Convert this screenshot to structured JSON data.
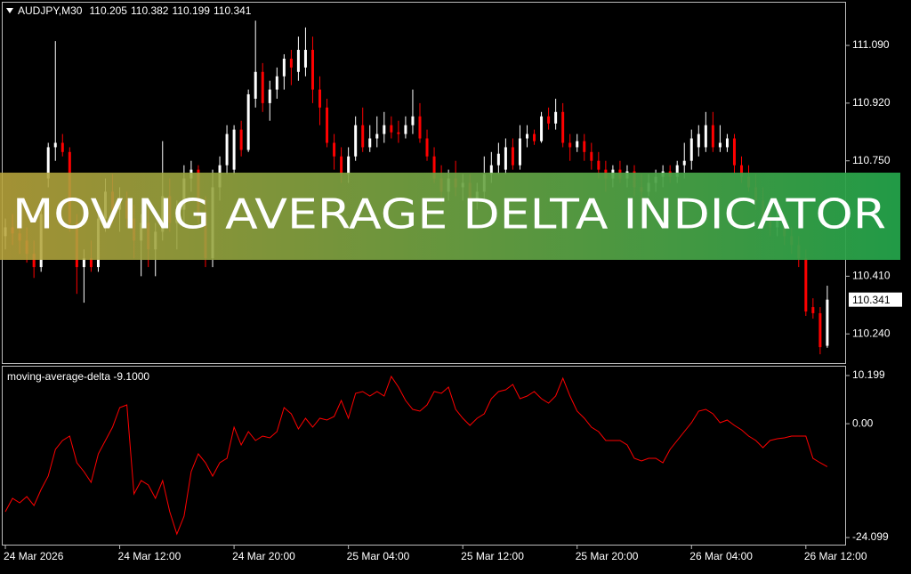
{
  "chart_data": [
    {
      "type": "candlestick",
      "title": "AUDJPY,M30",
      "categories": [
        "24 Mar 2026",
        null,
        null,
        null,
        null,
        null,
        null,
        null,
        null,
        null,
        null,
        null,
        null,
        null,
        null,
        null,
        "24 Mar 12:00",
        null,
        null,
        null,
        null,
        null,
        null,
        null,
        null,
        null,
        null,
        null,
        null,
        null,
        null,
        null,
        "24 Mar 20:00",
        null,
        null,
        null,
        null,
        null,
        null,
        null,
        null,
        null,
        null,
        null,
        null,
        null,
        null,
        null,
        "25 Mar 04:00",
        null,
        null,
        null,
        null,
        null,
        null,
        null,
        null,
        null,
        null,
        null,
        null,
        null,
        null,
        null,
        "25 Mar 12:00",
        null,
        null,
        null,
        null,
        null,
        null,
        null,
        null,
        null,
        null,
        null,
        null,
        null,
        null,
        null,
        "25 Mar 20:00",
        null,
        null,
        null,
        null,
        null,
        null,
        null,
        null,
        null,
        null,
        null,
        null,
        null,
        null,
        null,
        "26 Mar 04:00",
        null,
        null,
        null,
        null,
        null,
        null,
        null,
        null,
        null,
        null,
        null,
        null,
        null,
        null,
        null,
        "26 Mar 12:00",
        null,
        null,
        null
      ],
      "open": [
        110.528,
        110.554,
        110.536,
        110.515,
        110.476,
        110.437,
        110.698,
        110.79,
        110.803,
        110.776,
        110.567,
        110.437,
        110.463,
        110.437,
        110.58,
        110.659,
        110.606,
        110.633,
        110.58,
        110.515,
        110.567,
        110.489,
        110.541,
        110.646,
        110.567,
        110.606,
        110.698,
        110.724,
        110.593,
        110.463,
        110.672,
        110.737,
        110.724,
        110.842,
        110.782,
        110.933,
        111.012,
        110.92,
        110.96,
        110.999,
        111.051,
        111.012,
        111.025,
        111.077,
        110.96,
        110.907,
        110.803,
        110.763,
        110.711,
        110.763,
        110.855,
        110.79,
        110.816,
        110.829,
        110.855,
        110.834,
        110.829,
        110.855,
        110.881,
        110.816,
        110.763,
        110.698,
        110.659,
        110.698,
        110.672,
        110.685,
        110.633,
        110.659,
        110.711,
        110.737,
        110.724,
        110.79,
        110.737,
        110.816,
        110.829,
        110.808,
        110.881,
        110.86,
        110.894,
        110.803,
        110.79,
        110.808,
        110.776,
        110.75,
        110.724,
        110.698,
        110.724,
        110.698,
        110.719,
        110.672,
        110.659,
        110.685,
        110.703,
        110.719,
        110.703,
        110.737,
        110.75,
        110.79,
        110.79,
        110.855,
        110.79,
        110.79,
        110.816,
        110.737,
        110.703,
        110.672,
        110.633,
        110.58,
        110.554,
        110.58,
        110.528,
        110.502,
        110.463,
        110.319,
        110.301,
        110.205
      ],
      "high": [
        110.58,
        110.593,
        110.567,
        110.554,
        110.515,
        110.62,
        110.803,
        111.103,
        110.829,
        110.79,
        110.593,
        110.489,
        110.515,
        110.62,
        110.698,
        110.711,
        110.672,
        110.659,
        110.62,
        110.593,
        110.606,
        110.567,
        110.808,
        110.698,
        110.633,
        110.737,
        110.75,
        110.737,
        110.646,
        110.724,
        110.763,
        110.855,
        110.855,
        110.868,
        110.96,
        111.163,
        111.038,
        110.986,
        111.025,
        111.064,
        111.077,
        111.116,
        111.143,
        111.116,
        110.999,
        110.933,
        110.829,
        110.79,
        110.79,
        110.881,
        110.907,
        110.855,
        110.881,
        110.894,
        110.881,
        110.868,
        110.881,
        110.96,
        110.92,
        110.842,
        110.79,
        110.737,
        110.724,
        110.75,
        110.711,
        110.711,
        110.685,
        110.763,
        110.776,
        110.803,
        110.816,
        110.816,
        110.855,
        110.855,
        110.842,
        110.894,
        110.907,
        110.933,
        110.92,
        110.829,
        110.829,
        110.829,
        110.803,
        110.776,
        110.75,
        110.737,
        110.75,
        110.737,
        110.737,
        110.711,
        110.711,
        110.724,
        110.737,
        110.737,
        110.75,
        110.803,
        110.842,
        110.855,
        110.894,
        110.894,
        110.855,
        110.829,
        110.829,
        110.763,
        110.737,
        110.711,
        110.672,
        110.62,
        110.606,
        110.593,
        110.554,
        110.528,
        110.489,
        110.345,
        110.319,
        110.382
      ],
      "low": [
        110.489,
        110.502,
        110.476,
        110.45,
        110.405,
        110.423,
        110.672,
        110.75,
        110.763,
        110.541,
        110.358,
        110.332,
        110.423,
        110.423,
        110.541,
        110.567,
        110.541,
        110.554,
        110.463,
        110.41,
        110.437,
        110.41,
        110.515,
        110.541,
        110.489,
        110.567,
        110.659,
        110.567,
        110.437,
        110.437,
        110.633,
        110.711,
        110.711,
        110.763,
        110.776,
        110.907,
        110.894,
        110.868,
        110.933,
        110.96,
        110.973,
        110.986,
        110.999,
        110.92,
        110.855,
        110.79,
        110.724,
        110.685,
        110.685,
        110.75,
        110.776,
        110.776,
        110.79,
        110.803,
        110.816,
        110.803,
        110.816,
        110.829,
        110.803,
        110.75,
        110.685,
        110.62,
        110.633,
        110.646,
        110.633,
        110.606,
        110.606,
        110.633,
        110.685,
        110.711,
        110.711,
        110.724,
        110.724,
        110.79,
        110.797,
        110.803,
        110.842,
        110.842,
        110.79,
        110.75,
        110.776,
        110.75,
        110.724,
        110.698,
        110.659,
        110.672,
        110.685,
        110.672,
        110.646,
        110.633,
        110.646,
        110.659,
        110.672,
        110.685,
        110.685,
        110.698,
        110.724,
        110.763,
        110.776,
        110.776,
        110.776,
        110.776,
        110.711,
        110.685,
        110.659,
        110.606,
        110.554,
        110.528,
        110.528,
        110.502,
        110.476,
        110.437,
        110.293,
        110.285,
        110.18,
        110.199
      ],
      "close": [
        110.554,
        110.536,
        110.515,
        110.476,
        110.437,
        110.593,
        110.79,
        110.803,
        110.776,
        110.567,
        110.437,
        110.463,
        110.437,
        110.58,
        110.659,
        110.606,
        110.633,
        110.58,
        110.515,
        110.567,
        110.489,
        110.541,
        110.646,
        110.567,
        110.606,
        110.698,
        110.724,
        110.593,
        110.463,
        110.672,
        110.737,
        110.829,
        110.842,
        110.782,
        110.946,
        111.012,
        110.92,
        110.96,
        110.999,
        111.051,
        111.025,
        111.077,
        111.077,
        110.96,
        110.907,
        110.803,
        110.763,
        110.711,
        110.763,
        110.855,
        110.79,
        110.816,
        110.829,
        110.855,
        110.834,
        110.829,
        110.855,
        110.881,
        110.816,
        110.763,
        110.698,
        110.659,
        110.698,
        110.672,
        110.685,
        110.633,
        110.659,
        110.711,
        110.737,
        110.771,
        110.79,
        110.737,
        110.816,
        110.829,
        110.808,
        110.881,
        110.86,
        110.894,
        110.803,
        110.79,
        110.808,
        110.776,
        110.75,
        110.724,
        110.698,
        110.724,
        110.698,
        110.719,
        110.672,
        110.659,
        110.685,
        110.703,
        110.719,
        110.703,
        110.737,
        110.75,
        110.816,
        110.829,
        110.855,
        110.79,
        110.803,
        110.816,
        110.737,
        110.703,
        110.672,
        110.633,
        110.58,
        110.554,
        110.58,
        110.528,
        110.502,
        110.463,
        110.306,
        110.301,
        110.201,
        110.341
      ],
      "up_color": "#ffffff",
      "down_color": "#ff0000",
      "ylim": [
        110.154,
        111.216
      ],
      "yticks": [
        {
          "value": 110.24,
          "label": "110.240"
        },
        {
          "value": 110.41,
          "label": "110.410"
        },
        {
          "value": 110.75,
          "label": "110.750"
        },
        {
          "value": 110.92,
          "label": "110.920"
        },
        {
          "value": 111.09,
          "label": "111.090"
        }
      ]
    },
    {
      "type": "line",
      "title": "moving-average-delta -9.1000",
      "color": "#ff0000",
      "values": [
        -18.63,
        -15.81,
        -16.75,
        -15.43,
        -17.32,
        -13.92,
        -11.1,
        -5.44,
        -3.56,
        -2.61,
        -8.27,
        -10.15,
        -12.42,
        -6.39,
        -3.56,
        -0.73,
        3.42,
        3.98,
        -14.87,
        -12.04,
        -12.98,
        -15.81,
        -12.04,
        -18.63,
        -23.35,
        -19.58,
        -10.15,
        -6.39,
        -8.27,
        -11.1,
        -8.27,
        -7.33,
        -0.73,
        -4.5,
        -1.67,
        -3.56,
        -2.61,
        -2.99,
        -1.67,
        3.42,
        2.1,
        -1.11,
        1.15,
        -0.73,
        1.15,
        0.78,
        1.53,
        4.92,
        1.15,
        6.43,
        6.81,
        5.87,
        6.81,
        5.87,
        10.01,
        7.75,
        4.92,
        3.04,
        2.66,
        3.98,
        6.81,
        6.43,
        7.75,
        3.04,
        1.15,
        -0.35,
        1.15,
        2.1,
        5.3,
        6.81,
        7.18,
        8.31,
        5.3,
        5.87,
        6.81,
        5.3,
        4.36,
        5.87,
        9.63,
        5.87,
        2.66,
        1.15,
        -0.73,
        -1.67,
        -3.56,
        -3.56,
        -3.56,
        -4.5,
        -7.33,
        -7.89,
        -7.33,
        -7.33,
        -8.27,
        -5.44,
        -3.56,
        -1.67,
        0.21,
        2.66,
        3.04,
        2.1,
        0.21,
        0.78,
        -0.35,
        -1.3,
        -2.61,
        -3.56,
        -5.06,
        -3.56,
        -3.18,
        -2.99,
        -2.61,
        -2.61,
        -2.61,
        -7.33,
        -8.27,
        -9.1
      ],
      "ylim": [
        -25.6,
        12.08
      ],
      "yticks": [
        -24.099,
        {
          "value": 0,
          "label": "0.00"
        },
        10.199
      ]
    }
  ],
  "banner": {
    "title": "MOVING AVERAGE DELTA INDICATOR"
  }
}
